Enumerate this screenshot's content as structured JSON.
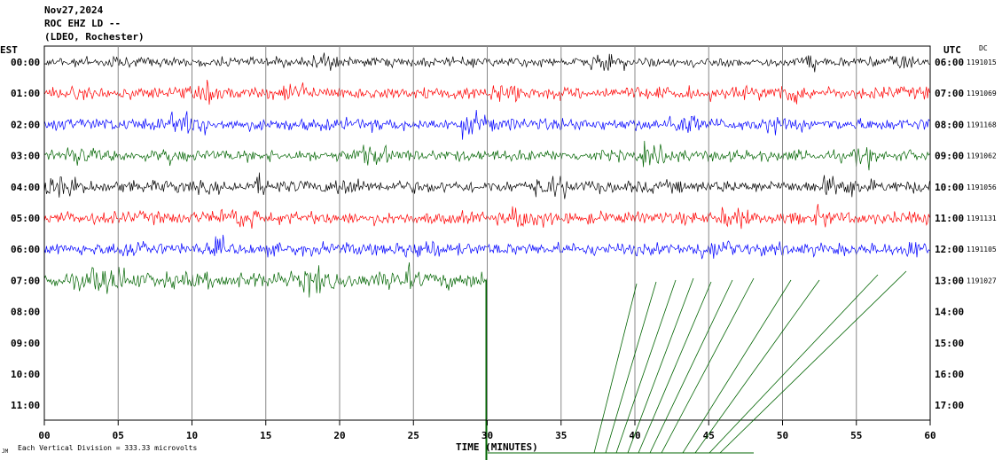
{
  "header": {
    "date": "Nov27,2024",
    "station": "ROC EHZ LD --",
    "network": "(LDEO, Rochester)"
  },
  "left_axis_title": "EST",
  "right_axis_title": "UTC",
  "dc_label": "DC",
  "xlabel": "TIME (MINUTES)",
  "scale_note": "Each Vertical Division =  333.33 microvolts",
  "corner_mark": "JM",
  "chart_data": {
    "type": "line",
    "title": "",
    "xlabel": "TIME (MINUTES)",
    "xlim": [
      0,
      60
    ],
    "x_ticks": [
      "00",
      "05",
      "10",
      "15",
      "20",
      "25",
      "30",
      "35",
      "40",
      "45",
      "50",
      "55",
      "60"
    ],
    "left_hours": [
      "00:00",
      "01:00",
      "02:00",
      "03:00",
      "04:00",
      "05:00",
      "06:00",
      "07:00",
      "08:00",
      "09:00",
      "10:00",
      "11:00"
    ],
    "right_hours": [
      "06:00",
      "07:00",
      "08:00",
      "09:00",
      "10:00",
      "11:00",
      "12:00",
      "13:00",
      "14:00",
      "15:00",
      "16:00",
      "17:00"
    ],
    "dc_offsets": [
      "1191015",
      "1191069",
      "1191168",
      "1191062",
      "1191056",
      "1191131",
      "1191105",
      "1191027"
    ],
    "trace_colors": [
      "#000000",
      "#ff0000",
      "#0000ff",
      "#006400"
    ],
    "traces": [
      {
        "hour": 0,
        "color": "#000000",
        "end_minute": 60,
        "amplitude": 0.45
      },
      {
        "hour": 1,
        "color": "#ff0000",
        "end_minute": 60,
        "amplitude": 0.6
      },
      {
        "hour": 2,
        "color": "#0000ff",
        "end_minute": 60,
        "amplitude": 0.6
      },
      {
        "hour": 3,
        "color": "#006400",
        "end_minute": 60,
        "amplitude": 0.55
      },
      {
        "hour": 4,
        "color": "#000000",
        "end_minute": 60,
        "amplitude": 0.6
      },
      {
        "hour": 5,
        "color": "#ff0000",
        "end_minute": 60,
        "amplitude": 0.6
      },
      {
        "hour": 6,
        "color": "#0000ff",
        "end_minute": 60,
        "amplitude": 0.6
      },
      {
        "hour": 7,
        "color": "#006400",
        "end_minute": 30,
        "amplitude": 0.8
      }
    ],
    "grid": "vertical-every-5-minutes"
  }
}
